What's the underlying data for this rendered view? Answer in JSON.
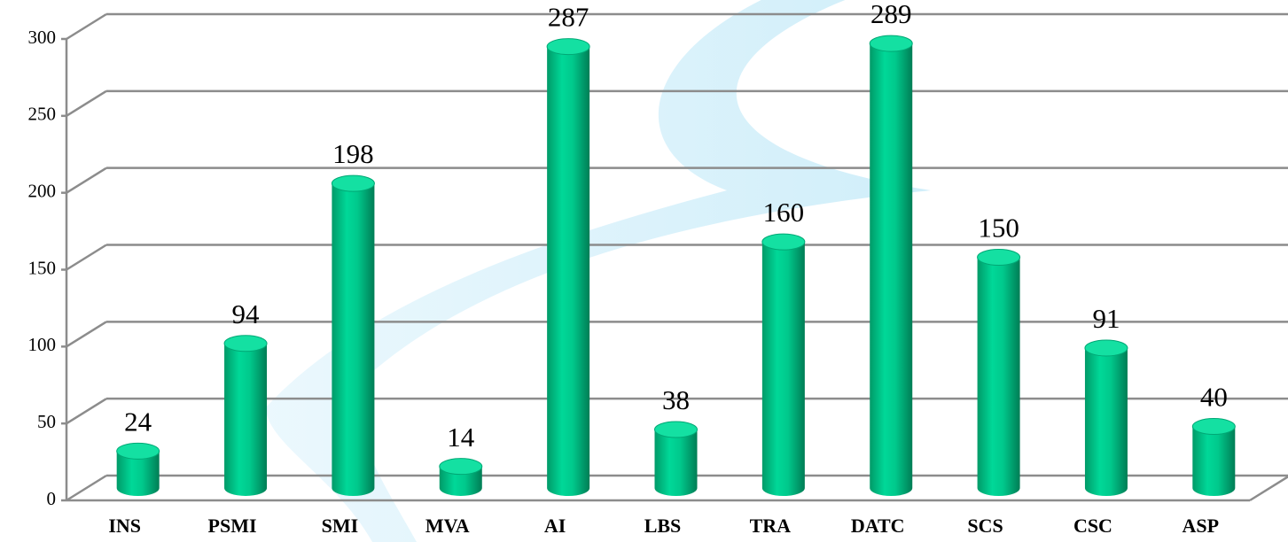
{
  "chart_data": {
    "type": "bar",
    "categories": [
      "INS",
      "PSMI",
      "SMI",
      "MVA",
      "AI",
      "LBS",
      "TRA",
      "DATC",
      "SCS",
      "CSC",
      "ASP"
    ],
    "values": [
      24,
      94,
      198,
      14,
      287,
      38,
      160,
      289,
      150,
      91,
      40
    ],
    "color": "#00c98c",
    "ylim": [
      0,
      300
    ],
    "yticks": [
      0,
      50,
      100,
      150,
      200,
      250,
      300
    ],
    "grid": true
  }
}
